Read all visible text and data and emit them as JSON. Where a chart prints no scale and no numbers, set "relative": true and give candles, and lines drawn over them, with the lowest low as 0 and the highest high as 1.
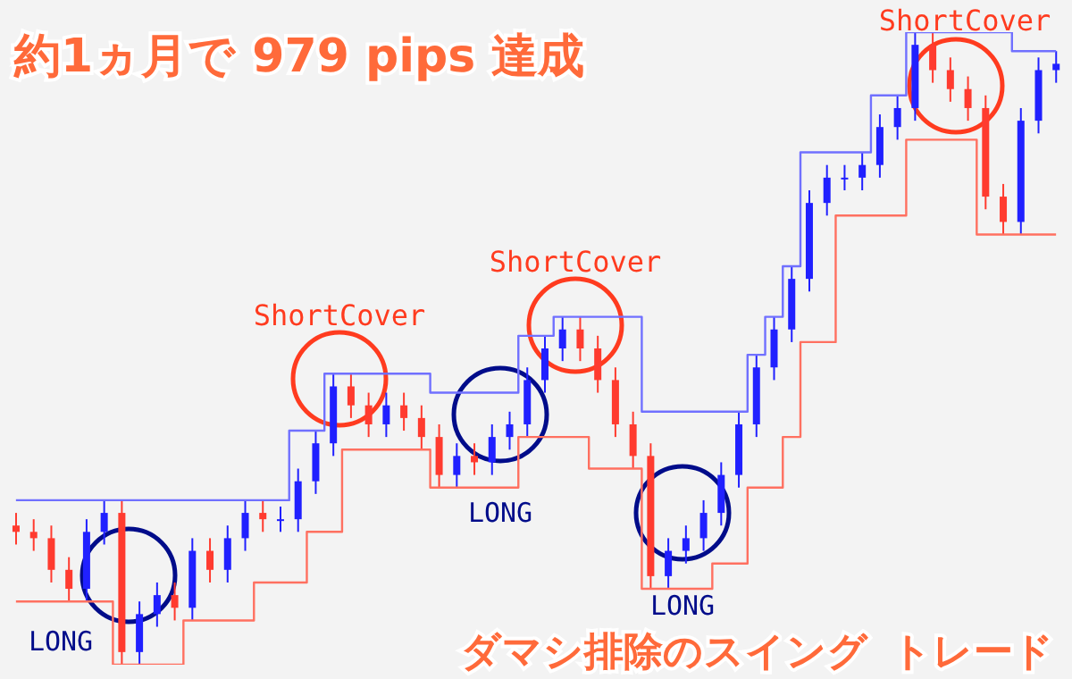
{
  "chart_data": {
    "type": "candlestick",
    "title": "約1ヵ月で 979 pips 達成",
    "relative": true,
    "categories": [
      null,
      null,
      null,
      null,
      null,
      null,
      null,
      null,
      null,
      null,
      null,
      null,
      null,
      null,
      null,
      null,
      null,
      null,
      null,
      null,
      null,
      null,
      null,
      null,
      null,
      null,
      null,
      null,
      null,
      null,
      null,
      null,
      null,
      null,
      null,
      null,
      null,
      null,
      null,
      null,
      null,
      null,
      null,
      null,
      null,
      null,
      null,
      null,
      null,
      null,
      null,
      null,
      null,
      null,
      null,
      null,
      null,
      null,
      null,
      null
    ],
    "ohlc": [
      [
        0.22,
        0.24,
        0.19,
        0.21
      ],
      [
        0.21,
        0.23,
        0.18,
        0.2
      ],
      [
        0.2,
        0.22,
        0.13,
        0.15
      ],
      [
        0.15,
        0.17,
        0.1,
        0.12
      ],
      [
        0.12,
        0.23,
        0.1,
        0.21
      ],
      [
        0.21,
        0.26,
        0.19,
        0.24
      ],
      [
        0.24,
        0.26,
        0.0,
        0.02
      ],
      [
        0.02,
        0.1,
        0.0,
        0.08
      ],
      [
        0.08,
        0.13,
        0.06,
        0.11
      ],
      [
        0.11,
        0.13,
        0.07,
        0.09
      ],
      [
        0.09,
        0.2,
        0.07,
        0.18
      ],
      [
        0.18,
        0.2,
        0.13,
        0.15
      ],
      [
        0.15,
        0.22,
        0.13,
        0.2
      ],
      [
        0.2,
        0.26,
        0.18,
        0.24
      ],
      [
        0.24,
        0.26,
        0.21,
        0.23
      ],
      [
        0.23,
        0.25,
        0.21,
        0.23
      ],
      [
        0.23,
        0.31,
        0.21,
        0.29
      ],
      [
        0.29,
        0.37,
        0.27,
        0.35
      ],
      [
        0.35,
        0.46,
        0.33,
        0.44
      ],
      [
        0.44,
        0.46,
        0.39,
        0.41
      ],
      [
        0.41,
        0.43,
        0.36,
        0.38
      ],
      [
        0.38,
        0.43,
        0.36,
        0.41
      ],
      [
        0.41,
        0.43,
        0.37,
        0.39
      ],
      [
        0.39,
        0.41,
        0.34,
        0.36
      ],
      [
        0.36,
        0.38,
        0.28,
        0.3
      ],
      [
        0.3,
        0.35,
        0.28,
        0.33
      ],
      [
        0.33,
        0.35,
        0.3,
        0.32
      ],
      [
        0.32,
        0.38,
        0.3,
        0.36
      ],
      [
        0.36,
        0.4,
        0.34,
        0.38
      ],
      [
        0.38,
        0.47,
        0.36,
        0.45
      ],
      [
        0.45,
        0.52,
        0.43,
        0.5
      ],
      [
        0.5,
        0.55,
        0.48,
        0.53
      ],
      [
        0.53,
        0.55,
        0.48,
        0.5
      ],
      [
        0.5,
        0.52,
        0.43,
        0.45
      ],
      [
        0.45,
        0.47,
        0.36,
        0.38
      ],
      [
        0.38,
        0.4,
        0.31,
        0.33
      ],
      [
        0.33,
        0.35,
        0.12,
        0.14
      ],
      [
        0.14,
        0.2,
        0.12,
        0.18
      ],
      [
        0.18,
        0.22,
        0.16,
        0.2
      ],
      [
        0.2,
        0.26,
        0.18,
        0.24
      ],
      [
        0.24,
        0.32,
        0.22,
        0.3
      ],
      [
        0.3,
        0.4,
        0.28,
        0.38
      ],
      [
        0.38,
        0.49,
        0.36,
        0.47
      ],
      [
        0.47,
        0.55,
        0.45,
        0.53
      ],
      [
        0.53,
        0.63,
        0.51,
        0.61
      ],
      [
        0.61,
        0.75,
        0.59,
        0.73
      ],
      [
        0.73,
        0.79,
        0.71,
        0.77
      ],
      [
        0.77,
        0.79,
        0.75,
        0.77
      ],
      [
        0.77,
        0.81,
        0.75,
        0.79
      ],
      [
        0.79,
        0.87,
        0.77,
        0.85
      ],
      [
        0.85,
        0.9,
        0.83,
        0.88
      ],
      [
        0.88,
        1.0,
        0.86,
        0.98
      ],
      [
        0.98,
        1.0,
        0.92,
        0.94
      ],
      [
        0.94,
        0.96,
        0.89,
        0.91
      ],
      [
        0.91,
        0.93,
        0.86,
        0.88
      ],
      [
        0.88,
        0.9,
        0.72,
        0.74
      ],
      [
        0.74,
        0.76,
        0.68,
        0.7
      ],
      [
        0.7,
        0.88,
        0.68,
        0.86
      ],
      [
        0.86,
        0.96,
        0.84,
        0.94
      ],
      [
        0.94,
        0.97,
        0.92,
        0.95
      ]
    ],
    "colors": [
      "#ff3b2f",
      "#ff3b2f",
      "#ff3b2f",
      "#ff3b2f",
      "#2020ff",
      "#2020ff",
      "#ff3b2f",
      "#2020ff",
      "#2020ff",
      "#ff3b2f",
      "#2020ff",
      "#ff3b2f",
      "#2020ff",
      "#2020ff",
      "#ff3b2f",
      "#2020ff",
      "#2020ff",
      "#2020ff",
      "#2020ff",
      "#ff3b2f",
      "#ff3b2f",
      "#2020ff",
      "#ff3b2f",
      "#ff3b2f",
      "#ff3b2f",
      "#2020ff",
      "#ff3b2f",
      "#2020ff",
      "#2020ff",
      "#2020ff",
      "#2020ff",
      "#2020ff",
      "#ff3b2f",
      "#ff3b2f",
      "#ff3b2f",
      "#ff3b2f",
      "#ff3b2f",
      "#2020ff",
      "#2020ff",
      "#2020ff",
      "#2020ff",
      "#2020ff",
      "#2020ff",
      "#2020ff",
      "#2020ff",
      "#2020ff",
      "#2020ff",
      "#2020ff",
      "#2020ff",
      "#2020ff",
      "#2020ff",
      "#2020ff",
      "#ff3b2f",
      "#ff3b2f",
      "#ff3b2f",
      "#ff3b2f",
      "#ff3b2f",
      "#2020ff",
      "#2020ff",
      "#2020ff"
    ],
    "series": [
      {
        "type": "step",
        "color": "#7070ff",
        "values": [
          0.26,
          0.26,
          0.26,
          0.26,
          0.26,
          0.26,
          0.26,
          0.26,
          0.26,
          0.26,
          0.26,
          0.26,
          0.26,
          0.26,
          0.26,
          0.26,
          0.37,
          0.37,
          0.46,
          0.46,
          0.46,
          0.46,
          0.46,
          0.46,
          0.43,
          0.43,
          0.43,
          0.43,
          0.43,
          0.52,
          0.52,
          0.55,
          0.55,
          0.55,
          0.55,
          0.55,
          0.4,
          0.4,
          0.4,
          0.4,
          0.4,
          0.4,
          0.49,
          0.55,
          0.63,
          0.81,
          0.81,
          0.81,
          0.81,
          0.9,
          0.9,
          1.0,
          1.0,
          1.0,
          1.0,
          1.0,
          1.0,
          0.97,
          0.97,
          0.97
        ]
      },
      {
        "type": "step",
        "color": "#ff7060",
        "values": [
          0.1,
          0.1,
          0.1,
          0.1,
          0.1,
          0.1,
          0.0,
          0.0,
          0.0,
          0.0,
          0.07,
          0.07,
          0.07,
          0.07,
          0.13,
          0.13,
          0.13,
          0.21,
          0.21,
          0.34,
          0.34,
          0.34,
          0.34,
          0.34,
          0.28,
          0.28,
          0.28,
          0.28,
          0.28,
          0.36,
          0.36,
          0.36,
          0.36,
          0.31,
          0.31,
          0.31,
          0.12,
          0.12,
          0.12,
          0.12,
          0.16,
          0.16,
          0.28,
          0.28,
          0.36,
          0.51,
          0.51,
          0.71,
          0.71,
          0.71,
          0.71,
          0.83,
          0.83,
          0.83,
          0.83,
          0.68,
          0.68,
          0.68,
          0.68,
          0.68
        ]
      }
    ],
    "annotations": [
      "ShortCover",
      "ShortCover",
      "ShortCover",
      "LONG",
      "LONG",
      "LONG",
      "ダマシ排除のスイング トレード"
    ]
  }
}
